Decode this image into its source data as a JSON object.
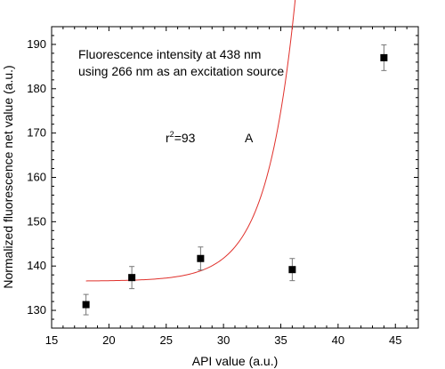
{
  "chart_data": {
    "type": "scatter",
    "title": "",
    "xlabel": "API value (a.u.)",
    "ylabel": "Normalized fluorescence net value (a.u.)",
    "xlim": [
      15,
      47
    ],
    "ylim": [
      126,
      194
    ],
    "xticks": [
      "15",
      "20",
      "25",
      "30",
      "35",
      "40",
      "45"
    ],
    "yticks": [
      "130",
      "140",
      "150",
      "160",
      "170",
      "180",
      "190"
    ],
    "grid": false,
    "annotations": {
      "line1": "Fluorescence intensity at 438 nm",
      "line2": "using 266 nm as an excitation source",
      "r2_prefix": "r",
      "r2_sup": "2",
      "r2_suffix": "=93",
      "panel_label": "A"
    },
    "series": [
      {
        "x": [
          18,
          22,
          28,
          36,
          44
        ],
        "y": [
          131.3,
          137.4,
          141.7,
          139.2,
          187.0
        ],
        "error": [
          2.3,
          2.5,
          2.6,
          2.5,
          2.9
        ],
        "marker": "square",
        "color": "#000000"
      }
    ],
    "fit": {
      "type": "exponential",
      "color": "#e0302b",
      "x_range": [
        18,
        44
      ],
      "y0": 136.6,
      "A": 3.1e-05,
      "t": 2.495
    }
  }
}
